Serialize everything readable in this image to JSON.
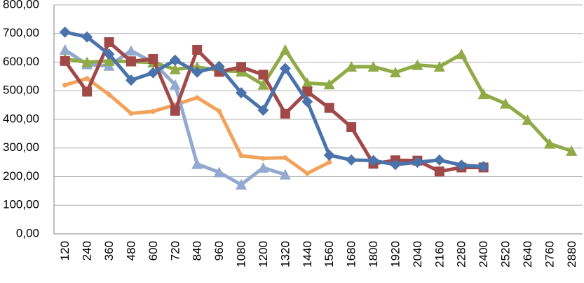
{
  "chart_data": {
    "type": "line",
    "title": "",
    "xlabel": "",
    "ylabel": "",
    "ylim": [
      0,
      800
    ],
    "y_ticks": [
      "0,00",
      "100,00",
      "200,00",
      "300,00",
      "400,00",
      "500,00",
      "600,00",
      "700,00",
      "800,00"
    ],
    "categories": [
      "120",
      "240",
      "360",
      "480",
      "600",
      "720",
      "840",
      "960",
      "1080",
      "1200",
      "1320",
      "1440",
      "1560",
      "1680",
      "1800",
      "1920",
      "2040",
      "2160",
      "2280",
      "2400",
      "2520",
      "2640",
      "2760",
      "2880"
    ],
    "grid": "horizontal",
    "legend": "none",
    "series": [
      {
        "color": "#4a73ac",
        "marker": "diamond",
        "values": [
          705,
          688,
          628,
          537,
          563,
          607,
          565,
          585,
          493,
          432,
          578,
          462,
          275,
          258,
          256,
          242,
          250,
          258,
          240,
          235,
          null,
          null,
          null,
          null
        ]
      },
      {
        "color": "#a14948",
        "marker": "square",
        "values": [
          604,
          497,
          670,
          603,
          611,
          430,
          643,
          566,
          583,
          556,
          420,
          497,
          440,
          373,
          245,
          257,
          256,
          218,
          232,
          232,
          null,
          null,
          null,
          null
        ]
      },
      {
        "color": "#8faa46",
        "marker": "triangle",
        "values": [
          611,
          600,
          604,
          602,
          599,
          575,
          583,
          571,
          567,
          521,
          643,
          527,
          522,
          584,
          584,
          564,
          590,
          584,
          628,
          488,
          455,
          398,
          315,
          290
        ]
      },
      {
        "color": "#f2a25a",
        "marker": "circle",
        "values": [
          520,
          543,
          487,
          421,
          428,
          451,
          476,
          429,
          273,
          264,
          266,
          211,
          250,
          null,
          null,
          null,
          null,
          null,
          null,
          null,
          null,
          null,
          null,
          null
        ]
      },
      {
        "color": "#93a9cf",
        "marker": "triangle",
        "values": [
          643,
          592,
          587,
          640,
          599,
          521,
          244,
          215,
          172,
          231,
          207,
          null,
          null,
          null,
          null,
          null,
          null,
          null,
          null,
          null,
          null,
          null,
          null,
          null
        ]
      }
    ]
  }
}
